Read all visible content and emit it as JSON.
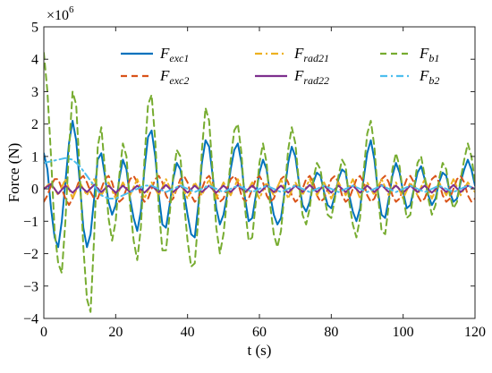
{
  "chart_data": {
    "type": "line",
    "title": "",
    "xlabel": "t (s)",
    "ylabel": "Force (N)",
    "y_multiplier_label": "×10",
    "y_multiplier_exponent": "6",
    "xlim": [
      0,
      120
    ],
    "ylim": [
      -4,
      5
    ],
    "xticks": [
      0,
      20,
      40,
      60,
      80,
      100,
      120
    ],
    "yticks": [
      -4,
      -3,
      -2,
      -1,
      0,
      1,
      2,
      3,
      4,
      5
    ],
    "grid": false,
    "legend_position": "top-right",
    "units_note": "y values in units of 10^6 N",
    "series": [
      {
        "name": "F",
        "subscript": "exc1",
        "color": "#0072BD",
        "dash": "solid",
        "x": [
          0,
          1,
          2,
          3,
          4,
          5,
          6,
          7,
          8,
          9,
          10,
          11,
          12,
          13,
          14,
          15,
          16,
          17,
          18,
          19,
          20,
          21,
          22,
          23,
          24,
          25,
          26,
          27,
          28,
          29,
          30,
          31,
          32,
          33,
          34,
          35,
          36,
          37,
          38,
          39,
          40,
          41,
          42,
          43,
          44,
          45,
          46,
          47,
          48,
          49,
          50,
          51,
          52,
          53,
          54,
          55,
          56,
          57,
          58,
          59,
          60,
          61,
          62,
          63,
          64,
          65,
          66,
          67,
          68,
          69,
          70,
          71,
          72,
          73,
          74,
          75,
          76,
          77,
          78,
          79,
          80,
          81,
          82,
          83,
          84,
          85,
          86,
          87,
          88,
          89,
          90,
          91,
          92,
          93,
          94,
          95,
          96,
          97,
          98,
          99,
          100,
          101,
          102,
          103,
          104,
          105,
          106,
          107,
          108,
          109,
          110,
          111,
          112,
          113,
          114,
          115,
          116,
          117,
          118,
          119,
          120
        ],
        "y": [
          1.1,
          0.6,
          -0.6,
          -1.5,
          -1.8,
          -1.0,
          0.2,
          1.4,
          2.1,
          1.5,
          0.2,
          -1.2,
          -1.8,
          -1.4,
          -0.3,
          0.9,
          1.1,
          0.4,
          -0.4,
          -0.8,
          -0.5,
          0.3,
          0.9,
          0.6,
          -0.3,
          -0.9,
          -1.3,
          -0.7,
          0.6,
          1.6,
          1.8,
          1.0,
          -0.2,
          -1.1,
          -1.2,
          -0.5,
          0.3,
          0.8,
          0.6,
          -0.1,
          -0.8,
          -1.4,
          -1.5,
          -0.5,
          0.8,
          1.5,
          1.3,
          0.4,
          -0.6,
          -1.1,
          -0.8,
          -0.2,
          0.6,
          1.2,
          1.4,
          0.8,
          -0.3,
          -1.0,
          -0.9,
          -0.2,
          0.5,
          0.9,
          0.6,
          -0.2,
          -0.8,
          -1.1,
          -0.9,
          -0.1,
          0.8,
          1.3,
          1.0,
          0.2,
          -0.5,
          -0.7,
          -0.4,
          0.2,
          0.5,
          0.4,
          -0.1,
          -0.5,
          -0.6,
          -0.2,
          0.3,
          0.6,
          0.5,
          -0.2,
          -0.7,
          -1.0,
          -0.6,
          0.3,
          1.1,
          1.5,
          0.9,
          -0.1,
          -0.8,
          -0.9,
          -0.3,
          0.4,
          0.8,
          0.5,
          -0.1,
          -0.6,
          -0.5,
          0.0,
          0.5,
          0.7,
          0.3,
          -0.2,
          -0.5,
          -0.3,
          0.2,
          0.5,
          0.4,
          -0.1,
          -0.4,
          -0.3,
          0.2,
          0.6,
          0.9,
          0.6,
          0.1
        ]
      },
      {
        "name": "F",
        "subscript": "exc2",
        "color": "#D95319",
        "dash": "dashed",
        "x": [
          0,
          1,
          2,
          3,
          4,
          5,
          6,
          7,
          8,
          9,
          10,
          11,
          12,
          13,
          14,
          15,
          16,
          17,
          18,
          19,
          20,
          21,
          22,
          23,
          24,
          25,
          26,
          27,
          28,
          29,
          30,
          31,
          32,
          33,
          34,
          35,
          36,
          37,
          38,
          39,
          40,
          41,
          42,
          43,
          44,
          45,
          46,
          47,
          48,
          49,
          50,
          51,
          52,
          53,
          54,
          55,
          56,
          57,
          58,
          59,
          60,
          61,
          62,
          63,
          64,
          65,
          66,
          67,
          68,
          69,
          70,
          71,
          72,
          73,
          74,
          75,
          76,
          77,
          78,
          79,
          80,
          81,
          82,
          83,
          84,
          85,
          86,
          87,
          88,
          89,
          90,
          91,
          92,
          93,
          94,
          95,
          96,
          97,
          98,
          99,
          100,
          101,
          102,
          103,
          104,
          105,
          106,
          107,
          108,
          109,
          110,
          111,
          112,
          113,
          114,
          115,
          116,
          117,
          118,
          119,
          120
        ],
        "y": [
          -0.4,
          -0.2,
          0.1,
          0.3,
          0.3,
          0.0,
          -0.3,
          -0.5,
          -0.3,
          0.0,
          0.3,
          0.4,
          0.2,
          -0.1,
          -0.3,
          -0.3,
          0.0,
          0.3,
          0.4,
          0.2,
          -0.2,
          -0.4,
          -0.3,
          0.0,
          0.3,
          0.4,
          0.2,
          -0.2,
          -0.4,
          -0.3,
          0.0,
          0.3,
          0.4,
          0.2,
          -0.2,
          -0.4,
          -0.3,
          0.0,
          0.3,
          0.4,
          0.2,
          -0.2,
          -0.4,
          -0.3,
          0.0,
          0.3,
          0.4,
          0.2,
          -0.2,
          -0.4,
          -0.3,
          0.0,
          0.3,
          0.4,
          0.2,
          -0.2,
          -0.4,
          -0.3,
          0.0,
          0.3,
          0.4,
          0.2,
          -0.2,
          -0.4,
          -0.3,
          0.0,
          0.3,
          0.4,
          0.2,
          -0.2,
          -0.4,
          -0.3,
          0.0,
          0.3,
          0.4,
          0.2,
          -0.2,
          -0.4,
          -0.3,
          0.0,
          0.3,
          0.4,
          0.2,
          -0.2,
          -0.4,
          -0.3,
          0.0,
          0.3,
          0.4,
          0.2,
          -0.2,
          -0.4,
          -0.3,
          0.0,
          0.3,
          0.4,
          0.2,
          -0.2,
          -0.4,
          -0.3,
          0.0,
          0.3,
          0.4,
          0.2,
          -0.2,
          -0.4,
          -0.3,
          0.0,
          0.3,
          0.4,
          0.2,
          -0.2,
          -0.4,
          -0.3,
          0.0,
          0.3,
          0.4,
          0.2,
          -0.2,
          -0.4,
          -0.3
        ]
      },
      {
        "name": "F",
        "subscript": "rad21",
        "color": "#EDB120",
        "dash": "dashdot",
        "x": [
          0,
          2,
          4,
          6,
          8,
          10,
          12,
          14,
          16,
          18,
          20,
          22,
          24,
          26,
          28,
          30,
          32,
          34,
          36,
          38,
          40,
          42,
          44,
          46,
          48,
          50,
          52,
          54,
          56,
          58,
          60,
          62,
          64,
          66,
          68,
          70,
          72,
          74,
          76,
          78,
          80,
          82,
          84,
          86,
          88,
          90,
          92,
          94,
          96,
          98,
          100,
          102,
          104,
          106,
          108,
          110,
          112,
          114,
          116,
          118,
          120
        ],
        "y": [
          0.0,
          0.2,
          -0.2,
          0.3,
          -0.3,
          0.2,
          -0.2,
          0.3,
          -0.2,
          0.2,
          -0.3,
          0.2,
          -0.2,
          0.3,
          -0.3,
          0.2,
          -0.2,
          0.3,
          -0.2,
          0.2,
          -0.3,
          0.2,
          -0.2,
          0.3,
          -0.3,
          0.2,
          -0.2,
          0.3,
          -0.2,
          0.2,
          -0.3,
          0.2,
          -0.2,
          0.3,
          -0.3,
          0.2,
          -0.2,
          0.3,
          -0.2,
          0.2,
          -0.3,
          0.2,
          -0.2,
          0.3,
          -0.3,
          0.2,
          -0.2,
          0.3,
          -0.2,
          0.2,
          -0.3,
          0.2,
          -0.2,
          0.3,
          -0.3,
          0.2,
          -0.2,
          0.3,
          -0.2,
          0.2,
          -0.1
        ]
      },
      {
        "name": "F",
        "subscript": "rad22",
        "color": "#7E2F8E",
        "dash": "solid",
        "x": [
          0,
          2,
          4,
          6,
          8,
          10,
          12,
          14,
          16,
          18,
          20,
          22,
          24,
          26,
          28,
          30,
          32,
          34,
          36,
          38,
          40,
          42,
          44,
          46,
          48,
          50,
          52,
          54,
          56,
          58,
          60,
          62,
          64,
          66,
          68,
          70,
          72,
          74,
          76,
          78,
          80,
          82,
          84,
          86,
          88,
          90,
          92,
          94,
          96,
          98,
          100,
          102,
          104,
          106,
          108,
          110,
          112,
          114,
          116,
          118,
          120
        ],
        "y": [
          0.0,
          0.15,
          -0.15,
          0.1,
          -0.12,
          0.1,
          -0.1,
          0.12,
          -0.1,
          0.1,
          -0.12,
          0.1,
          -0.1,
          0.1,
          -0.12,
          0.1,
          -0.1,
          0.12,
          -0.1,
          0.1,
          -0.12,
          0.1,
          -0.1,
          0.1,
          -0.12,
          0.1,
          -0.1,
          0.12,
          -0.1,
          0.1,
          -0.12,
          0.1,
          -0.1,
          0.1,
          -0.12,
          0.1,
          -0.1,
          0.12,
          -0.1,
          0.1,
          -0.12,
          0.1,
          -0.1,
          0.1,
          -0.12,
          0.1,
          -0.1,
          0.12,
          -0.1,
          0.1,
          -0.12,
          0.1,
          -0.1,
          0.1,
          -0.12,
          0.1,
          -0.1,
          0.12,
          -0.1,
          0.1,
          0.0
        ]
      },
      {
        "name": "F",
        "subscript": "b1",
        "color": "#77AC30",
        "dash": "dashed",
        "x": [
          0,
          1,
          2,
          3,
          4,
          5,
          6,
          7,
          8,
          9,
          10,
          11,
          12,
          13,
          14,
          15,
          16,
          17,
          18,
          19,
          20,
          21,
          22,
          23,
          24,
          25,
          26,
          27,
          28,
          29,
          30,
          31,
          32,
          33,
          34,
          35,
          36,
          37,
          38,
          39,
          40,
          41,
          42,
          43,
          44,
          45,
          46,
          47,
          48,
          49,
          50,
          51,
          52,
          53,
          54,
          55,
          56,
          57,
          58,
          59,
          60,
          61,
          62,
          63,
          64,
          65,
          66,
          67,
          68,
          69,
          70,
          71,
          72,
          73,
          74,
          75,
          76,
          77,
          78,
          79,
          80,
          81,
          82,
          83,
          84,
          85,
          86,
          87,
          88,
          89,
          90,
          91,
          92,
          93,
          94,
          95,
          96,
          97,
          98,
          99,
          100,
          101,
          102,
          103,
          104,
          105,
          106,
          107,
          108,
          109,
          110,
          111,
          112,
          113,
          114,
          115,
          116,
          117,
          118,
          119,
          120
        ],
        "y": [
          4.2,
          3.0,
          1.0,
          -1.3,
          -2.3,
          -2.6,
          -1.0,
          1.2,
          3.0,
          2.6,
          0.5,
          -1.8,
          -3.4,
          -3.8,
          -1.5,
          1.3,
          1.9,
          0.6,
          -0.9,
          -1.6,
          -1.0,
          0.4,
          1.4,
          1.0,
          -0.5,
          -1.6,
          -2.2,
          -1.2,
          0.9,
          2.6,
          2.9,
          1.5,
          -0.6,
          -1.9,
          -1.9,
          -0.8,
          0.4,
          1.2,
          1.0,
          -0.4,
          -1.6,
          -2.4,
          -2.3,
          -0.9,
          1.2,
          2.5,
          2.1,
          0.5,
          -1.2,
          -2.0,
          -1.4,
          -0.3,
          0.9,
          1.8,
          2.0,
          1.1,
          -0.6,
          -1.6,
          -1.5,
          -0.4,
          0.8,
          1.4,
          0.8,
          -0.5,
          -1.4,
          -1.8,
          -1.3,
          -0.1,
          1.2,
          1.9,
          1.4,
          0.2,
          -0.8,
          -1.1,
          -0.6,
          0.3,
          0.8,
          0.6,
          -0.2,
          -0.8,
          -0.9,
          -0.3,
          0.4,
          0.9,
          0.7,
          -0.4,
          -1.1,
          -1.5,
          -0.9,
          0.5,
          1.7,
          2.1,
          1.3,
          -0.2,
          -1.3,
          -1.4,
          -0.5,
          0.6,
          1.1,
          0.7,
          -0.2,
          -0.9,
          -0.8,
          0.0,
          0.8,
          1.0,
          0.4,
          -0.3,
          -0.8,
          -0.5,
          0.3,
          0.8,
          0.6,
          -0.2,
          -0.6,
          -0.4,
          0.3,
          0.9,
          1.4,
          1.0,
          0.2
        ]
      },
      {
        "name": "F",
        "subscript": "b2",
        "color": "#4DBEEE",
        "dash": "dashdot",
        "x": [
          0,
          2,
          4,
          6,
          8,
          10,
          12,
          14,
          16,
          18,
          20,
          22,
          24,
          26,
          28,
          30,
          32,
          34,
          36,
          38,
          40,
          42,
          44,
          46,
          48,
          50,
          52,
          54,
          56,
          58,
          60,
          62,
          64,
          66,
          68,
          70,
          72,
          74,
          76,
          78,
          80,
          82,
          84,
          86,
          88,
          90,
          92,
          94,
          96,
          98,
          100,
          102,
          104,
          106,
          108,
          110,
          112,
          114,
          116,
          118,
          120
        ],
        "y": [
          0.8,
          0.85,
          0.9,
          0.95,
          0.9,
          0.7,
          0.4,
          0.1,
          -0.2,
          -0.3,
          -0.3,
          -0.2,
          -0.1,
          0.0,
          0.1,
          0.1,
          0.0,
          -0.1,
          0.0,
          0.1,
          0.0,
          -0.1,
          0.0,
          0.1,
          0.0,
          -0.1,
          0.0,
          0.1,
          0.0,
          -0.1,
          0.0,
          0.1,
          0.0,
          -0.1,
          0.0,
          0.1,
          0.0,
          -0.1,
          0.0,
          0.1,
          0.0,
          -0.1,
          0.0,
          0.1,
          0.0,
          -0.1,
          0.0,
          0.1,
          0.0,
          -0.1,
          0.0,
          0.1,
          0.0,
          -0.1,
          0.0,
          0.1,
          0.0,
          -0.1,
          0.0,
          0.1,
          0.0
        ]
      }
    ]
  }
}
